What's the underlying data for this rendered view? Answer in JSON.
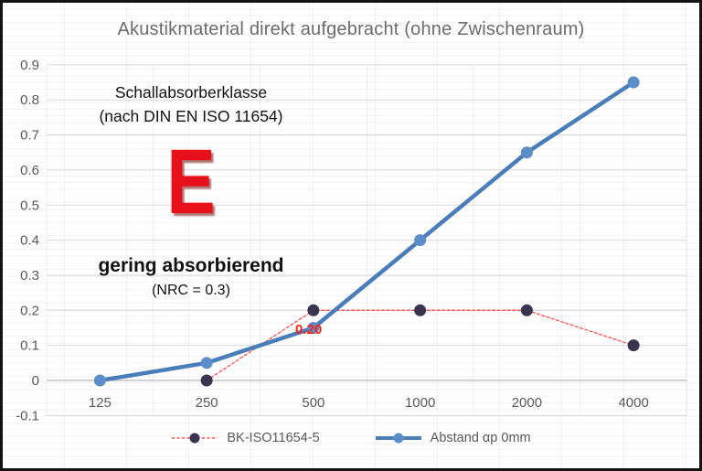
{
  "title": "Akustikmaterial direkt aufgebracht (ohne Zwischenraum)",
  "annotations": {
    "class_heading_line1": "Schallabsorberklasse",
    "class_heading_line2": "(nach DIN EN ISO 11654)",
    "class_letter": "E",
    "class_description": "gering absorbierend",
    "class_nrc": "(NRC = 0.3)",
    "point_label": "0.20"
  },
  "colors": {
    "reference_line": "#ff5050",
    "reference_marker": "#3a3450",
    "measure_line": "#4a7ebb",
    "measure_marker": "#5b8dc8",
    "title_text": "#6b6b6b",
    "tick_text": "#595959",
    "gridline": "#d9d9d9",
    "zero_line": "#b7b7b7",
    "boundary_line": "#ededed",
    "point_label_red": "#ff1f14"
  },
  "chart_data": {
    "type": "line",
    "title": "Akustikmaterial direkt aufgebracht (ohne Zwischenraum)",
    "categories": [
      "125",
      "250",
      "500",
      "1000",
      "2000",
      "4000"
    ],
    "yticks": [
      "0.9",
      "0.8",
      "0.7",
      "0.6",
      "0.5",
      "0.4",
      "0.3",
      "0.2",
      "0.1",
      "0",
      "-0.1"
    ],
    "ylim": [
      -0.1,
      0.9
    ],
    "grid": true,
    "legend_position": "bottom",
    "xlabel": "",
    "ylabel": "",
    "series": [
      {
        "name": "BK-ISO11654-5",
        "style": "dotted",
        "color": "#ff5050",
        "marker_color": "#3a3450",
        "x": [
          "250",
          "500",
          "1000",
          "2000",
          "4000"
        ],
        "values": [
          0,
          0.2,
          0.2,
          0.2,
          0.1
        ]
      },
      {
        "name": "Abstand  αp 0mm",
        "style": "solid",
        "color": "#4a7ebb",
        "marker_color": "#5b8dc8",
        "x": [
          "125",
          "250",
          "500",
          "1000",
          "2000",
          "4000"
        ],
        "values": [
          0,
          0.05,
          0.15,
          0.4,
          0.65,
          0.85
        ]
      }
    ],
    "annotation": {
      "text": "0.20",
      "series": "BK-ISO11654-5",
      "at_x": "500",
      "value": 0.2
    }
  }
}
